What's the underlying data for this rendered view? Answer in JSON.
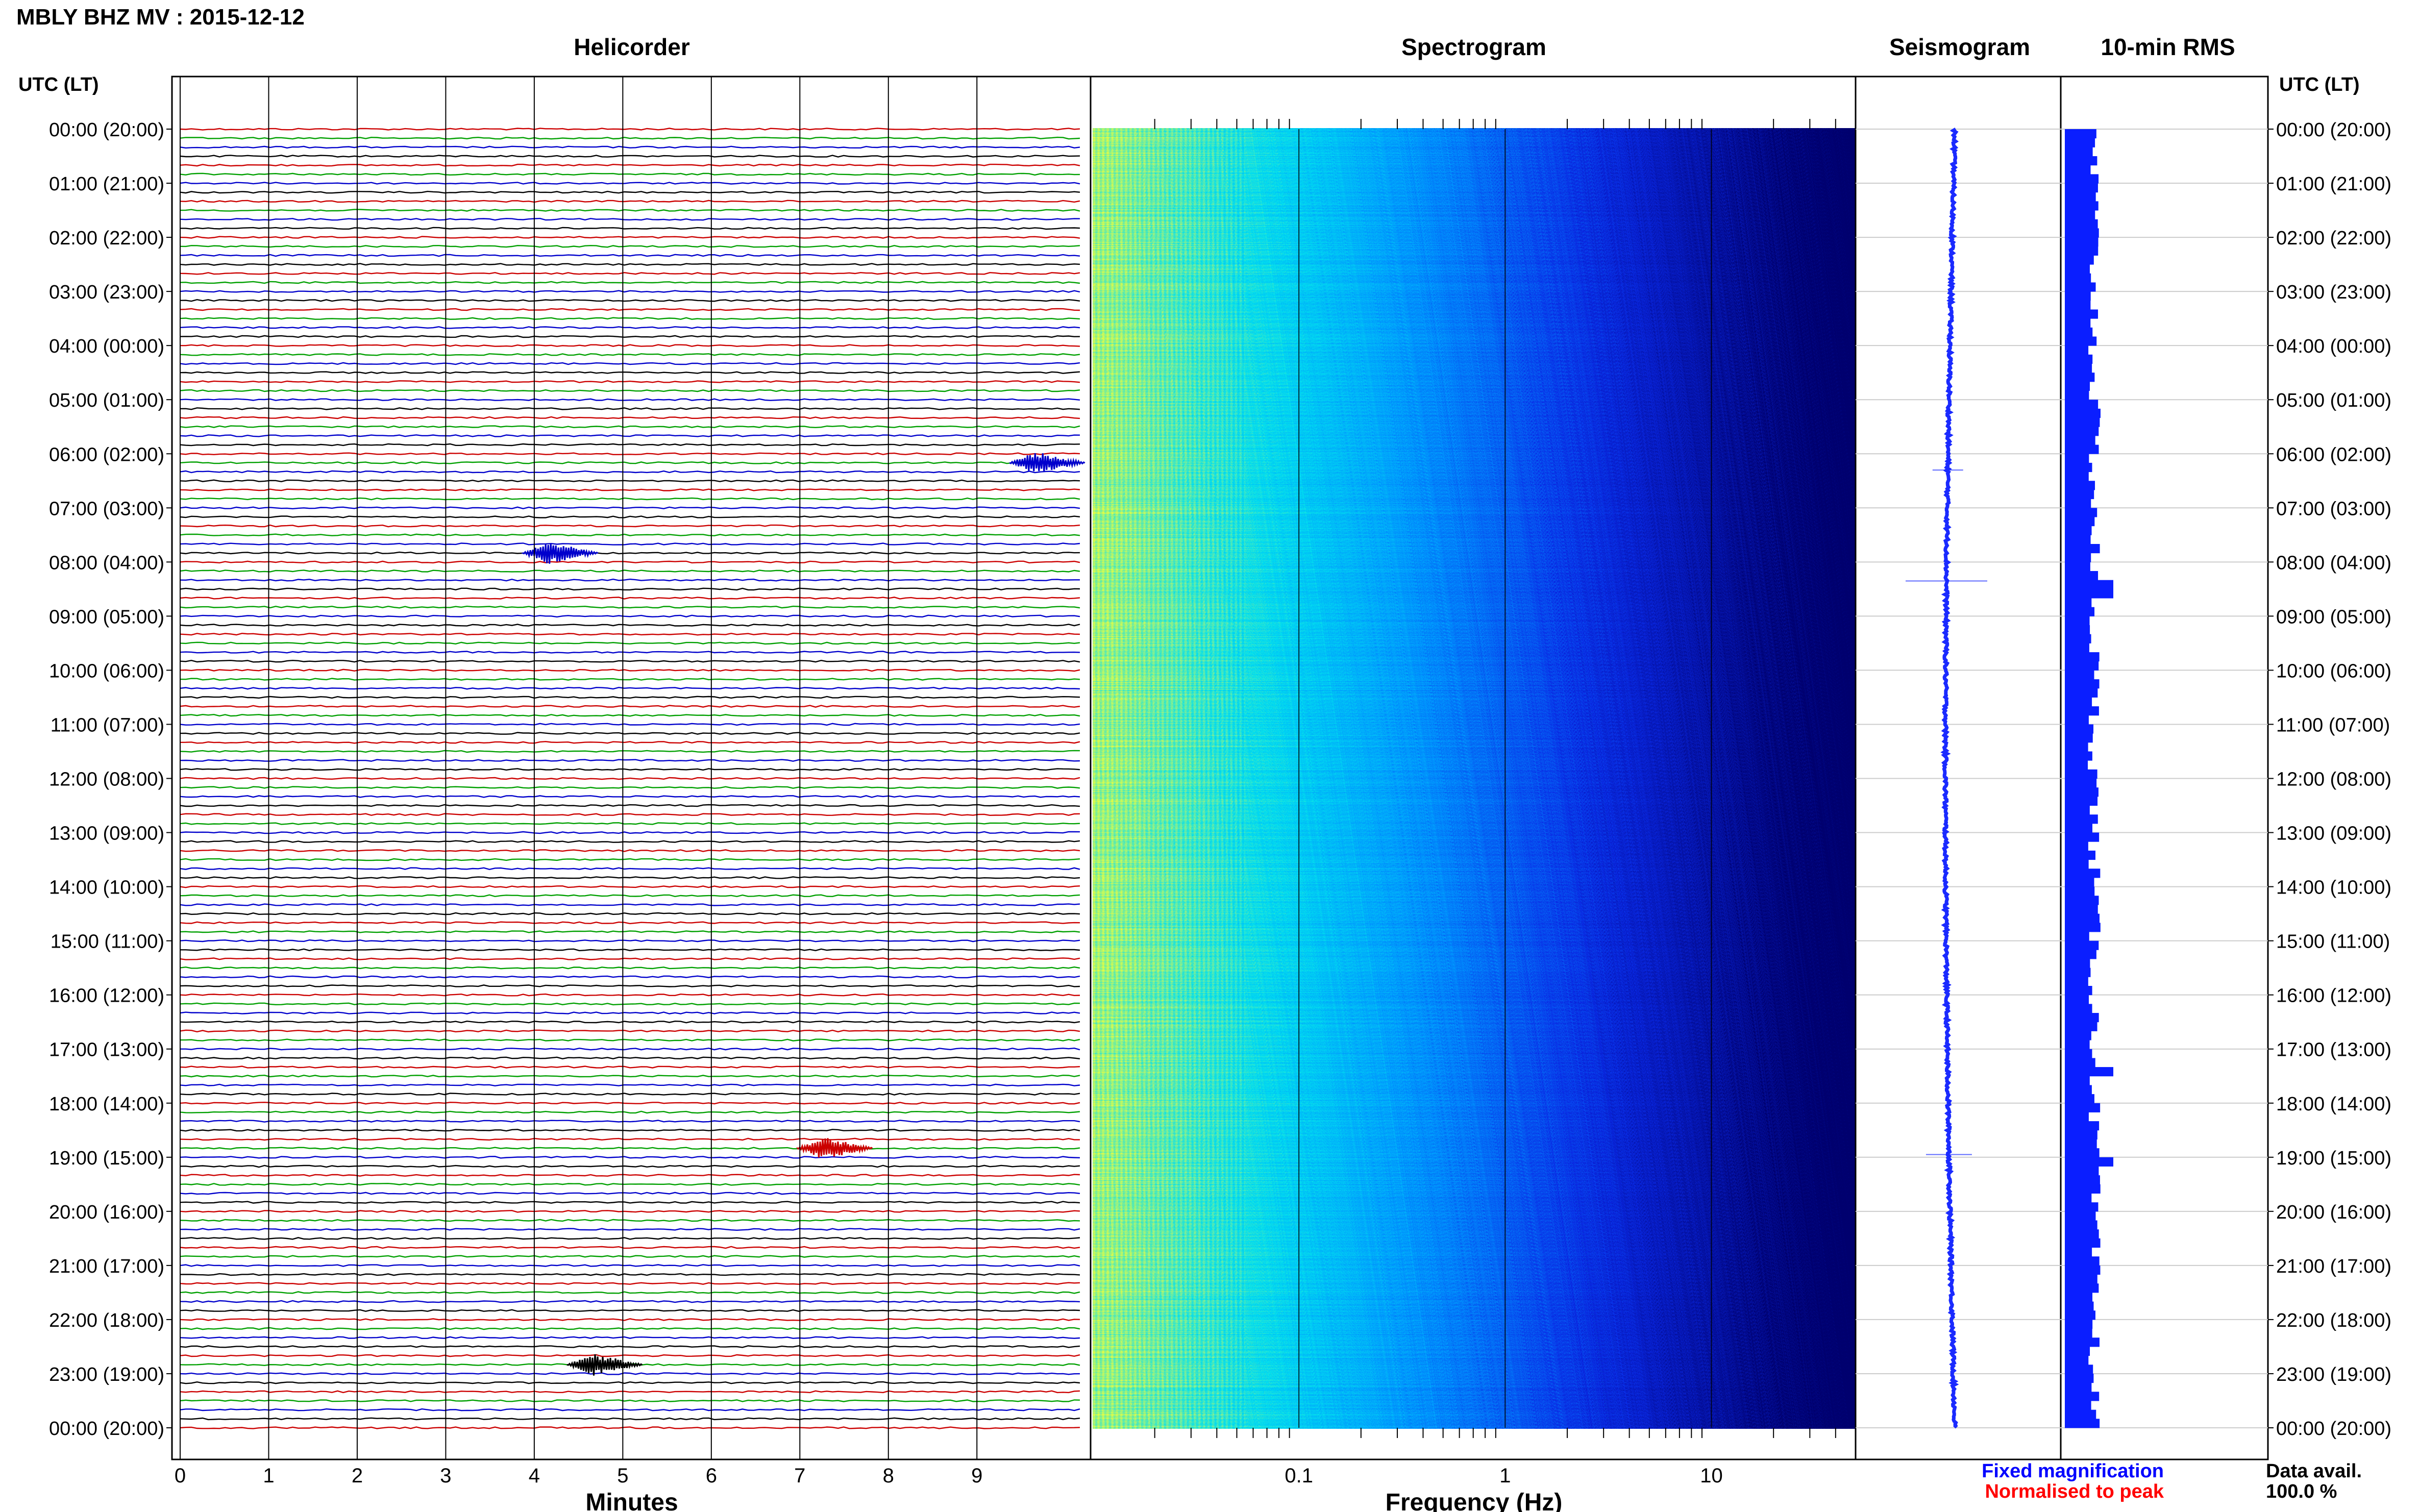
{
  "header": {
    "title": "MBLY BHZ MV : 2015-12-12",
    "utc_label_left": "UTC (LT)",
    "utc_label_right": "UTC (LT)"
  },
  "panels": {
    "helicorder": "Helicorder",
    "spectrogram": "Spectrogram",
    "seismogram": "Seismogram",
    "rms": "10-min RMS"
  },
  "axes": {
    "minutes_label": "Minutes",
    "frequency_label": "Frequency (Hz)",
    "minute_ticks": [
      "0",
      "1",
      "2",
      "3",
      "4",
      "5",
      "6",
      "7",
      "8",
      "9"
    ],
    "frequency_ticks": [
      "0.1",
      "1",
      "10"
    ]
  },
  "time_labels": [
    "00:00 (20:00)",
    "01:00 (21:00)",
    "02:00 (22:00)",
    "03:00 (23:00)",
    "04:00 (00:00)",
    "05:00 (01:00)",
    "06:00 (02:00)",
    "07:00 (03:00)",
    "08:00 (04:00)",
    "09:00 (05:00)",
    "10:00 (06:00)",
    "11:00 (07:00)",
    "12:00 (08:00)",
    "13:00 (09:00)",
    "14:00 (10:00)",
    "15:00 (11:00)",
    "16:00 (12:00)",
    "17:00 (13:00)",
    "18:00 (14:00)",
    "19:00 (15:00)",
    "20:00 (16:00)",
    "21:00 (17:00)",
    "22:00 (18:00)",
    "23:00 (19:00)",
    "00:00 (20:00)"
  ],
  "legend": {
    "fixed_magnification": "Fixed magnification",
    "normalised_to_peak": "Normalised to peak",
    "data_avail_label": "Data avail.",
    "data_avail_value": "100.0 %"
  },
  "colors": {
    "trace_cycle": [
      "#cc0000",
      "#00a000",
      "#0000cc",
      "#000000"
    ],
    "spectrogram_low": "#00007a",
    "spectrogram_mid": "#00e0ff",
    "spectrogram_high": "#e8ff40",
    "seismogram": "#1a2aff",
    "rms_bar": "#0a1eff",
    "fixed_magnification": "#0000ff",
    "normalised_to_peak": "#ff0000"
  },
  "chart_data": [
    {
      "type": "line",
      "title": "Helicorder",
      "xlabel": "Minutes",
      "x_range": [
        0,
        10
      ],
      "rows_per_hour": 6,
      "hours": 24,
      "events": [
        {
          "row": 47,
          "minute": 4.1,
          "color_index": 2
        },
        {
          "row": 37,
          "minute": 9.6,
          "color_index": 2
        },
        {
          "row": 113,
          "minute": 7.2,
          "color_index": 0
        },
        {
          "row": 137,
          "minute": 4.6,
          "color_index": 3
        }
      ]
    },
    {
      "type": "heatmap",
      "title": "Spectrogram",
      "xlabel": "Frequency (Hz)",
      "x_scale": "log",
      "x_range": [
        0.01,
        50
      ],
      "time_range_hours": [
        0,
        24
      ]
    },
    {
      "type": "line",
      "title": "Seismogram",
      "time_range_hours": [
        0,
        24
      ],
      "events_hours": [
        6.3,
        8.35,
        18.95
      ]
    },
    {
      "type": "bar",
      "title": "10-min RMS",
      "orientation": "horizontal",
      "bins_per_hour": 6,
      "peak_hours": [
        8.4,
        17.4,
        18.95
      ]
    }
  ]
}
